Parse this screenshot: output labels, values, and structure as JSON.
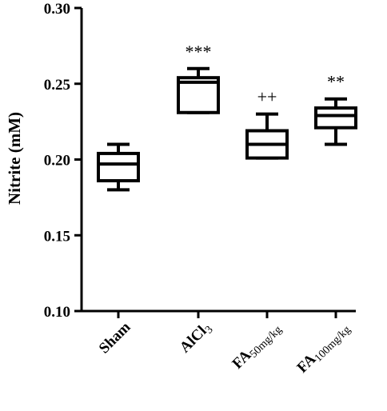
{
  "chart_data": {
    "type": "box",
    "ylabel": "Nitrite (mM)",
    "ylim": [
      0.1,
      0.3
    ],
    "yticks": [
      "0.10",
      "0.15",
      "0.20",
      "0.25",
      "0.30"
    ],
    "ytick_values": [
      0.1,
      0.15,
      0.2,
      0.25,
      0.3
    ],
    "grid": false,
    "legend": "none",
    "categories": [
      {
        "base": "Sham",
        "sub": ""
      },
      {
        "base": "AlCl",
        "sub": "3"
      },
      {
        "base": "FA",
        "sub": "50mg/kg"
      },
      {
        "base": "FA",
        "sub": "100mg/kg"
      }
    ],
    "boxes": [
      {
        "min": 0.18,
        "q1": 0.186,
        "median": 0.197,
        "q3": 0.204,
        "max": 0.21,
        "significance": ""
      },
      {
        "min": 0.231,
        "q1": 0.231,
        "median": 0.251,
        "q3": 0.254,
        "max": 0.26,
        "significance": "***"
      },
      {
        "min": 0.201,
        "q1": 0.201,
        "median": 0.21,
        "q3": 0.219,
        "max": 0.23,
        "significance": "++"
      },
      {
        "min": 0.21,
        "q1": 0.221,
        "median": 0.229,
        "q3": 0.234,
        "max": 0.24,
        "significance": "**"
      }
    ]
  }
}
